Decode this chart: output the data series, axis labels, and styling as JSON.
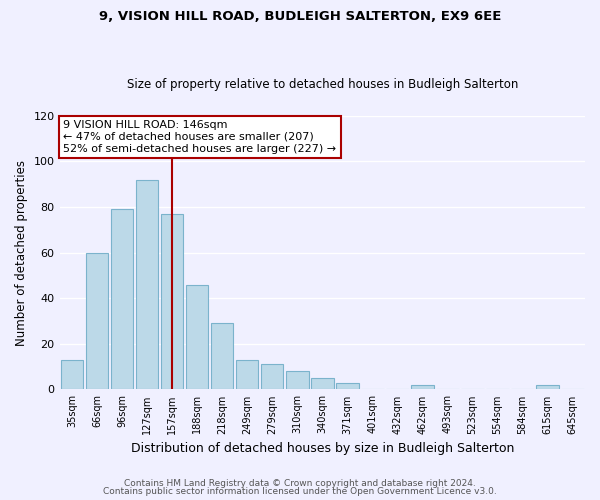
{
  "title": "9, VISION HILL ROAD, BUDLEIGH SALTERTON, EX9 6EE",
  "subtitle": "Size of property relative to detached houses in Budleigh Salterton",
  "xlabel": "Distribution of detached houses by size in Budleigh Salterton",
  "ylabel": "Number of detached properties",
  "bar_labels": [
    "35sqm",
    "66sqm",
    "96sqm",
    "127sqm",
    "157sqm",
    "188sqm",
    "218sqm",
    "249sqm",
    "279sqm",
    "310sqm",
    "340sqm",
    "371sqm",
    "401sqm",
    "432sqm",
    "462sqm",
    "493sqm",
    "523sqm",
    "554sqm",
    "584sqm",
    "615sqm",
    "645sqm"
  ],
  "bar_values": [
    13,
    60,
    79,
    92,
    77,
    46,
    29,
    13,
    11,
    8,
    5,
    3,
    0,
    0,
    2,
    0,
    0,
    0,
    0,
    2,
    0
  ],
  "bar_color": "#bcd9e8",
  "bar_edge_color": "#7bb3cc",
  "marker_value_index": 4,
  "marker_label": "9 VISION HILL ROAD: 146sqm",
  "annotation_line1": "← 47% of detached houses are smaller (207)",
  "annotation_line2": "52% of semi-detached houses are larger (227) →",
  "marker_color": "#aa0000",
  "ylim": [
    0,
    120
  ],
  "yticks": [
    0,
    20,
    40,
    60,
    80,
    100,
    120
  ],
  "footnote1": "Contains HM Land Registry data © Crown copyright and database right 2024.",
  "footnote2": "Contains public sector information licensed under the Open Government Licence v3.0.",
  "background_color": "#f0f0ff"
}
